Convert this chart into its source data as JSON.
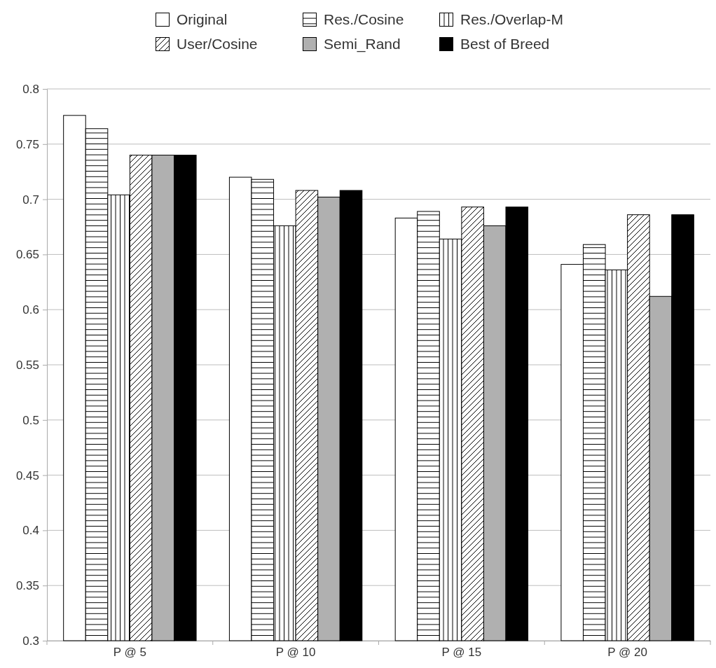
{
  "chart_data": {
    "type": "bar",
    "categories": [
      "P @ 5",
      "P @ 10",
      "P @ 15",
      "P @ 20"
    ],
    "series": [
      {
        "name": "Original",
        "color": "#ffffff",
        "values": [
          0.776,
          0.72,
          0.683,
          0.641
        ]
      },
      {
        "name": "Res./Cosine",
        "color": "#000000",
        "values": [
          0.764,
          0.718,
          0.689,
          0.659
        ]
      },
      {
        "name": "Res./Overlap-M",
        "color": "#000000",
        "values": [
          0.704,
          0.676,
          0.664,
          0.636
        ]
      },
      {
        "name": "User/Cosine",
        "color": "#000000",
        "values": [
          0.74,
          0.708,
          0.693,
          0.686
        ]
      },
      {
        "name": "Semi_Rand",
        "color": "#b0b0b0",
        "values": [
          0.74,
          0.702,
          0.676,
          0.612
        ]
      },
      {
        "name": "Best of Breed",
        "color": "#000000",
        "values": [
          0.74,
          0.708,
          0.693,
          0.686
        ]
      }
    ],
    "ylim": [
      0.3,
      0.8
    ],
    "yticks": [
      0.3,
      0.35,
      0.4,
      0.45,
      0.5,
      0.55,
      0.6,
      0.65,
      0.7,
      0.75,
      0.8
    ],
    "grid": "y",
    "legend": "top"
  }
}
